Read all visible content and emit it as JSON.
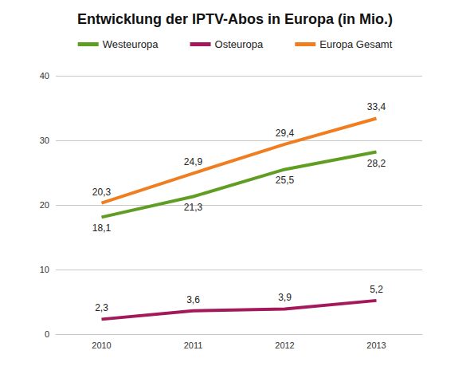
{
  "chart_data": {
    "type": "line",
    "title": "Entwicklung der IPTV-Abos in Europa (in Mio.)",
    "categories": [
      "2010",
      "2011",
      "2012",
      "2013"
    ],
    "series": [
      {
        "name": "Westeuropa",
        "color": "#5f9e22",
        "values": [
          18.1,
          21.3,
          25.5,
          28.2
        ],
        "value_labels": [
          "18,1",
          "21,3",
          "25,5",
          "28,2"
        ]
      },
      {
        "name": "Osteuropa",
        "color": "#a3195b",
        "values": [
          2.3,
          3.6,
          3.9,
          5.2
        ],
        "value_labels": [
          "2,3",
          "3,6",
          "3,9",
          "5,2"
        ]
      },
      {
        "name": "Europa Gesamt",
        "color": "#f07d1f",
        "values": [
          20.3,
          24.9,
          29.4,
          33.4
        ],
        "value_labels": [
          "20,3",
          "24,9",
          "29,4",
          "33,4"
        ]
      }
    ],
    "ylim": [
      0,
      40
    ],
    "yticks": [
      0,
      10,
      20,
      30,
      40
    ],
    "grid": true,
    "data_labels": true,
    "legend": "top"
  }
}
